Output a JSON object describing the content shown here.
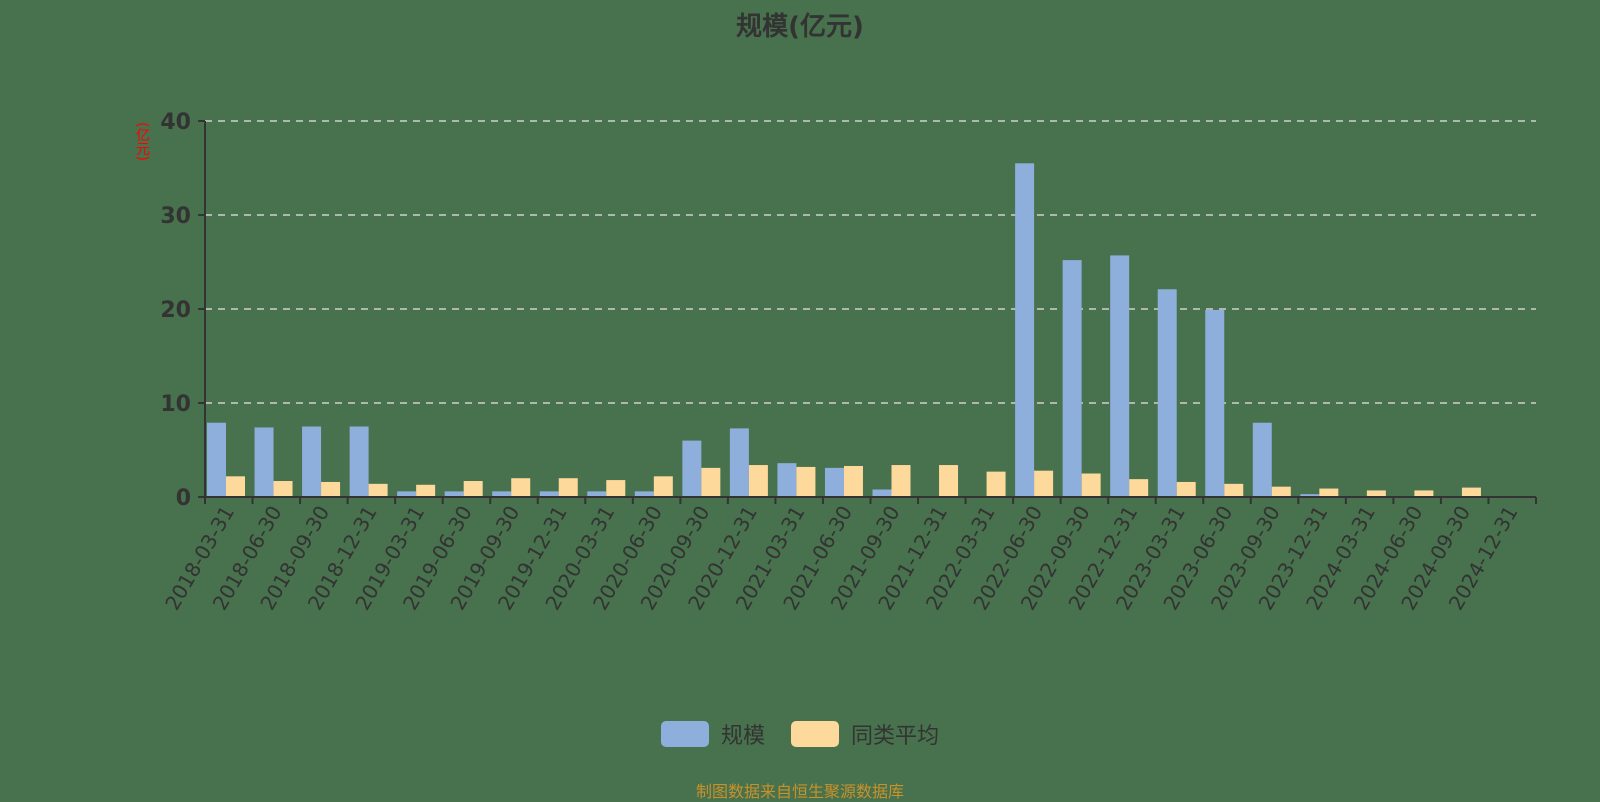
{
  "title": "规模(亿元)",
  "y_unit_label": "(亿元)",
  "legend": [
    {
      "label": "规模",
      "color": "#8eaedc"
    },
    {
      "label": "同类平均",
      "color": "#fdd99b"
    }
  ],
  "source_note": "制图数据来自恒生聚源数据库",
  "chart_data": {
    "type": "bar",
    "title": "规模(亿元)",
    "xlabel": "",
    "ylabel": "(亿元)",
    "ylim": [
      0,
      40
    ],
    "yticks": [
      0,
      10,
      20,
      30,
      40
    ],
    "grid": "horizontal dashed",
    "legend_position": "bottom",
    "categories": [
      "2018-03-31",
      "2018-06-30",
      "2018-09-30",
      "2018-12-31",
      "2019-03-31",
      "2019-06-30",
      "2019-09-30",
      "2019-12-31",
      "2020-03-31",
      "2020-06-30",
      "2020-09-30",
      "2020-12-31",
      "2021-03-31",
      "2021-06-30",
      "2021-09-30",
      "2021-12-31",
      "2022-03-31",
      "2022-06-30",
      "2022-09-30",
      "2022-12-31",
      "2023-03-31",
      "2023-06-30",
      "2023-09-30",
      "2023-12-31",
      "2024-03-31",
      "2024-06-30",
      "2024-09-30",
      "2024-12-31"
    ],
    "series": [
      {
        "name": "规模",
        "color": "#8eaedc",
        "values": [
          7.9,
          7.4,
          7.5,
          7.5,
          0.6,
          0.6,
          0.6,
          0.6,
          0.6,
          0.6,
          6.0,
          7.3,
          3.6,
          3.1,
          0.8,
          0,
          0,
          35.5,
          25.2,
          25.7,
          22.1,
          19.9,
          7.9,
          0.3,
          0,
          0,
          0,
          0
        ]
      },
      {
        "name": "同类平均",
        "color": "#fdd99b",
        "values": [
          2.2,
          1.7,
          1.6,
          1.4,
          1.3,
          1.7,
          2.0,
          2.0,
          1.8,
          2.2,
          3.1,
          3.4,
          3.2,
          3.3,
          3.4,
          3.4,
          2.7,
          2.8,
          2.5,
          1.9,
          1.6,
          1.4,
          1.1,
          0.9,
          0.7,
          0.7,
          1.0,
          0
        ]
      }
    ]
  }
}
